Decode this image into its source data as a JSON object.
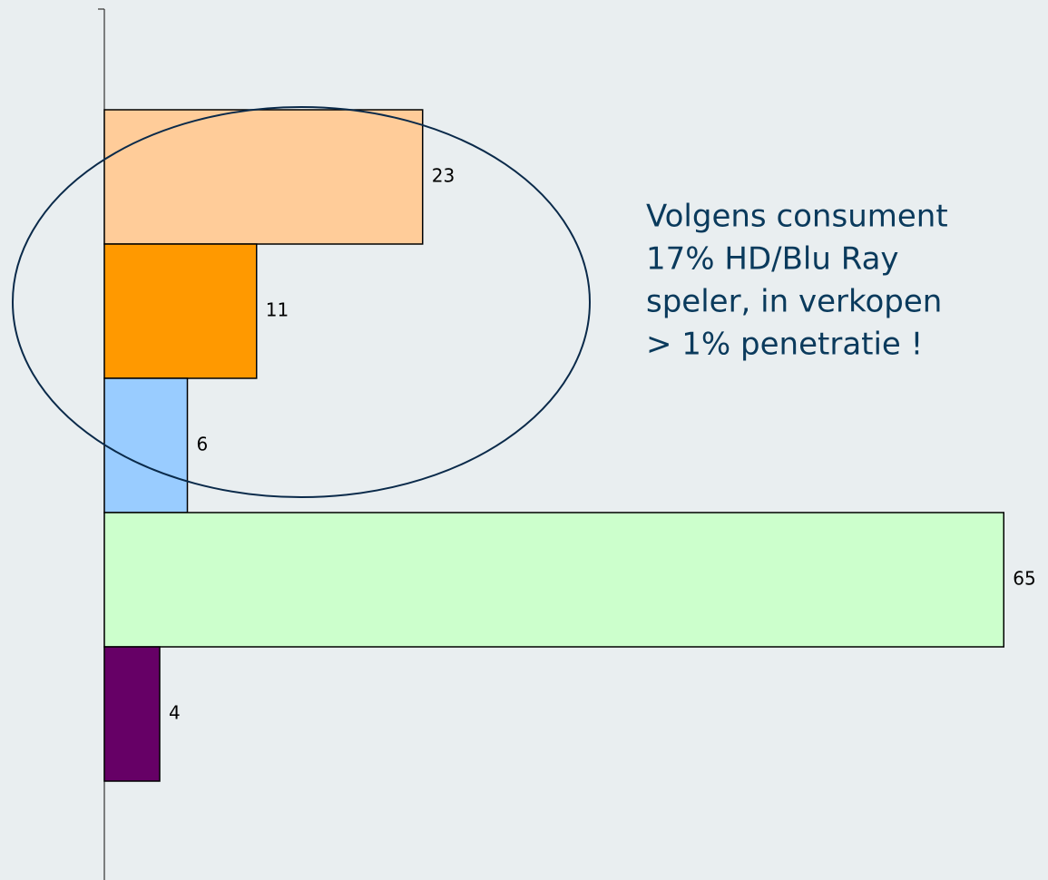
{
  "chart_data": {
    "type": "bar",
    "orientation": "horizontal",
    "values": [
      23,
      11,
      6,
      65,
      4
    ],
    "colors": [
      "#ffcc99",
      "#ff9900",
      "#99ccff",
      "#ccffcc",
      "#660066"
    ],
    "annotation": [
      "Volgens consument",
      "17% HD/Blu Ray",
      "speler, in verkopen",
      "> 1% penetratie !"
    ]
  }
}
